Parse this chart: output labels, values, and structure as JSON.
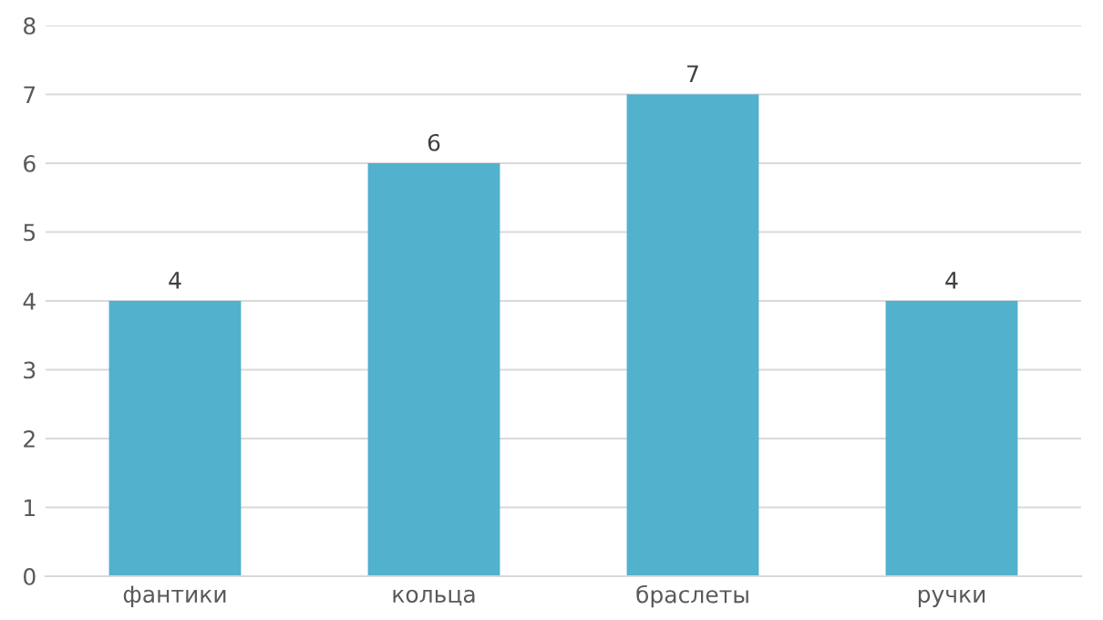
{
  "chart_data": {
    "type": "bar",
    "categories": [
      "фантики",
      "кольца",
      "браслеты",
      "ручки"
    ],
    "values": [
      4,
      6,
      7,
      4
    ],
    "color": "#52b1cd",
    "ylim": [
      0,
      8
    ],
    "yticks": [
      0,
      1,
      2,
      3,
      4,
      5,
      6,
      7,
      8
    ],
    "grid": "y",
    "data_labels": true
  }
}
